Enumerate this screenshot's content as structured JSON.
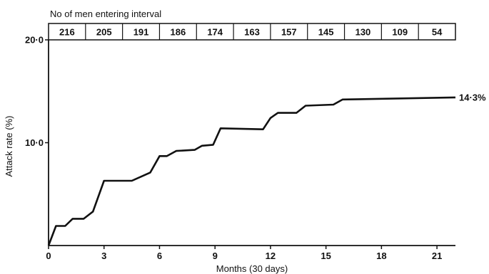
{
  "chart_data": {
    "type": "line",
    "title": "",
    "xlabel": "Months (30 days)",
    "ylabel": "Attack rate (%)",
    "xlim": [
      0,
      22
    ],
    "ylim": [
      0,
      20
    ],
    "x_ticks": [
      0,
      3,
      6,
      9,
      12,
      15,
      18,
      21
    ],
    "x_tick_labels": [
      "0",
      "3",
      "6",
      "9",
      "12",
      "15",
      "18",
      "21"
    ],
    "y_ticks": [
      10,
      20
    ],
    "y_tick_labels": [
      "10·0",
      "20·0"
    ],
    "grid": false,
    "series": [
      {
        "values": [
          [
            0,
            0
          ],
          [
            0.4,
            1.9
          ],
          [
            0.9,
            1.9
          ],
          [
            1.3,
            2.6
          ],
          [
            1.9,
            2.6
          ],
          [
            2.4,
            3.3
          ],
          [
            3.0,
            6.3
          ],
          [
            4.5,
            6.3
          ],
          [
            5.5,
            7.1
          ],
          [
            6.0,
            8.7
          ],
          [
            6.4,
            8.7
          ],
          [
            6.9,
            9.2
          ],
          [
            7.9,
            9.3
          ],
          [
            8.3,
            9.7
          ],
          [
            8.9,
            9.8
          ],
          [
            9.3,
            11.4
          ],
          [
            11.6,
            11.3
          ],
          [
            12.0,
            12.4
          ],
          [
            12.4,
            12.9
          ],
          [
            13.4,
            12.9
          ],
          [
            13.9,
            13.6
          ],
          [
            15.4,
            13.7
          ],
          [
            15.9,
            14.2
          ],
          [
            22,
            14.4
          ]
        ]
      }
    ],
    "end_label": "14·3%",
    "interval_table": {
      "header": "No of men entering interval",
      "counts": [
        "216",
        "205",
        "191",
        "186",
        "174",
        "163",
        "157",
        "145",
        "130",
        "109",
        "54"
      ]
    }
  }
}
